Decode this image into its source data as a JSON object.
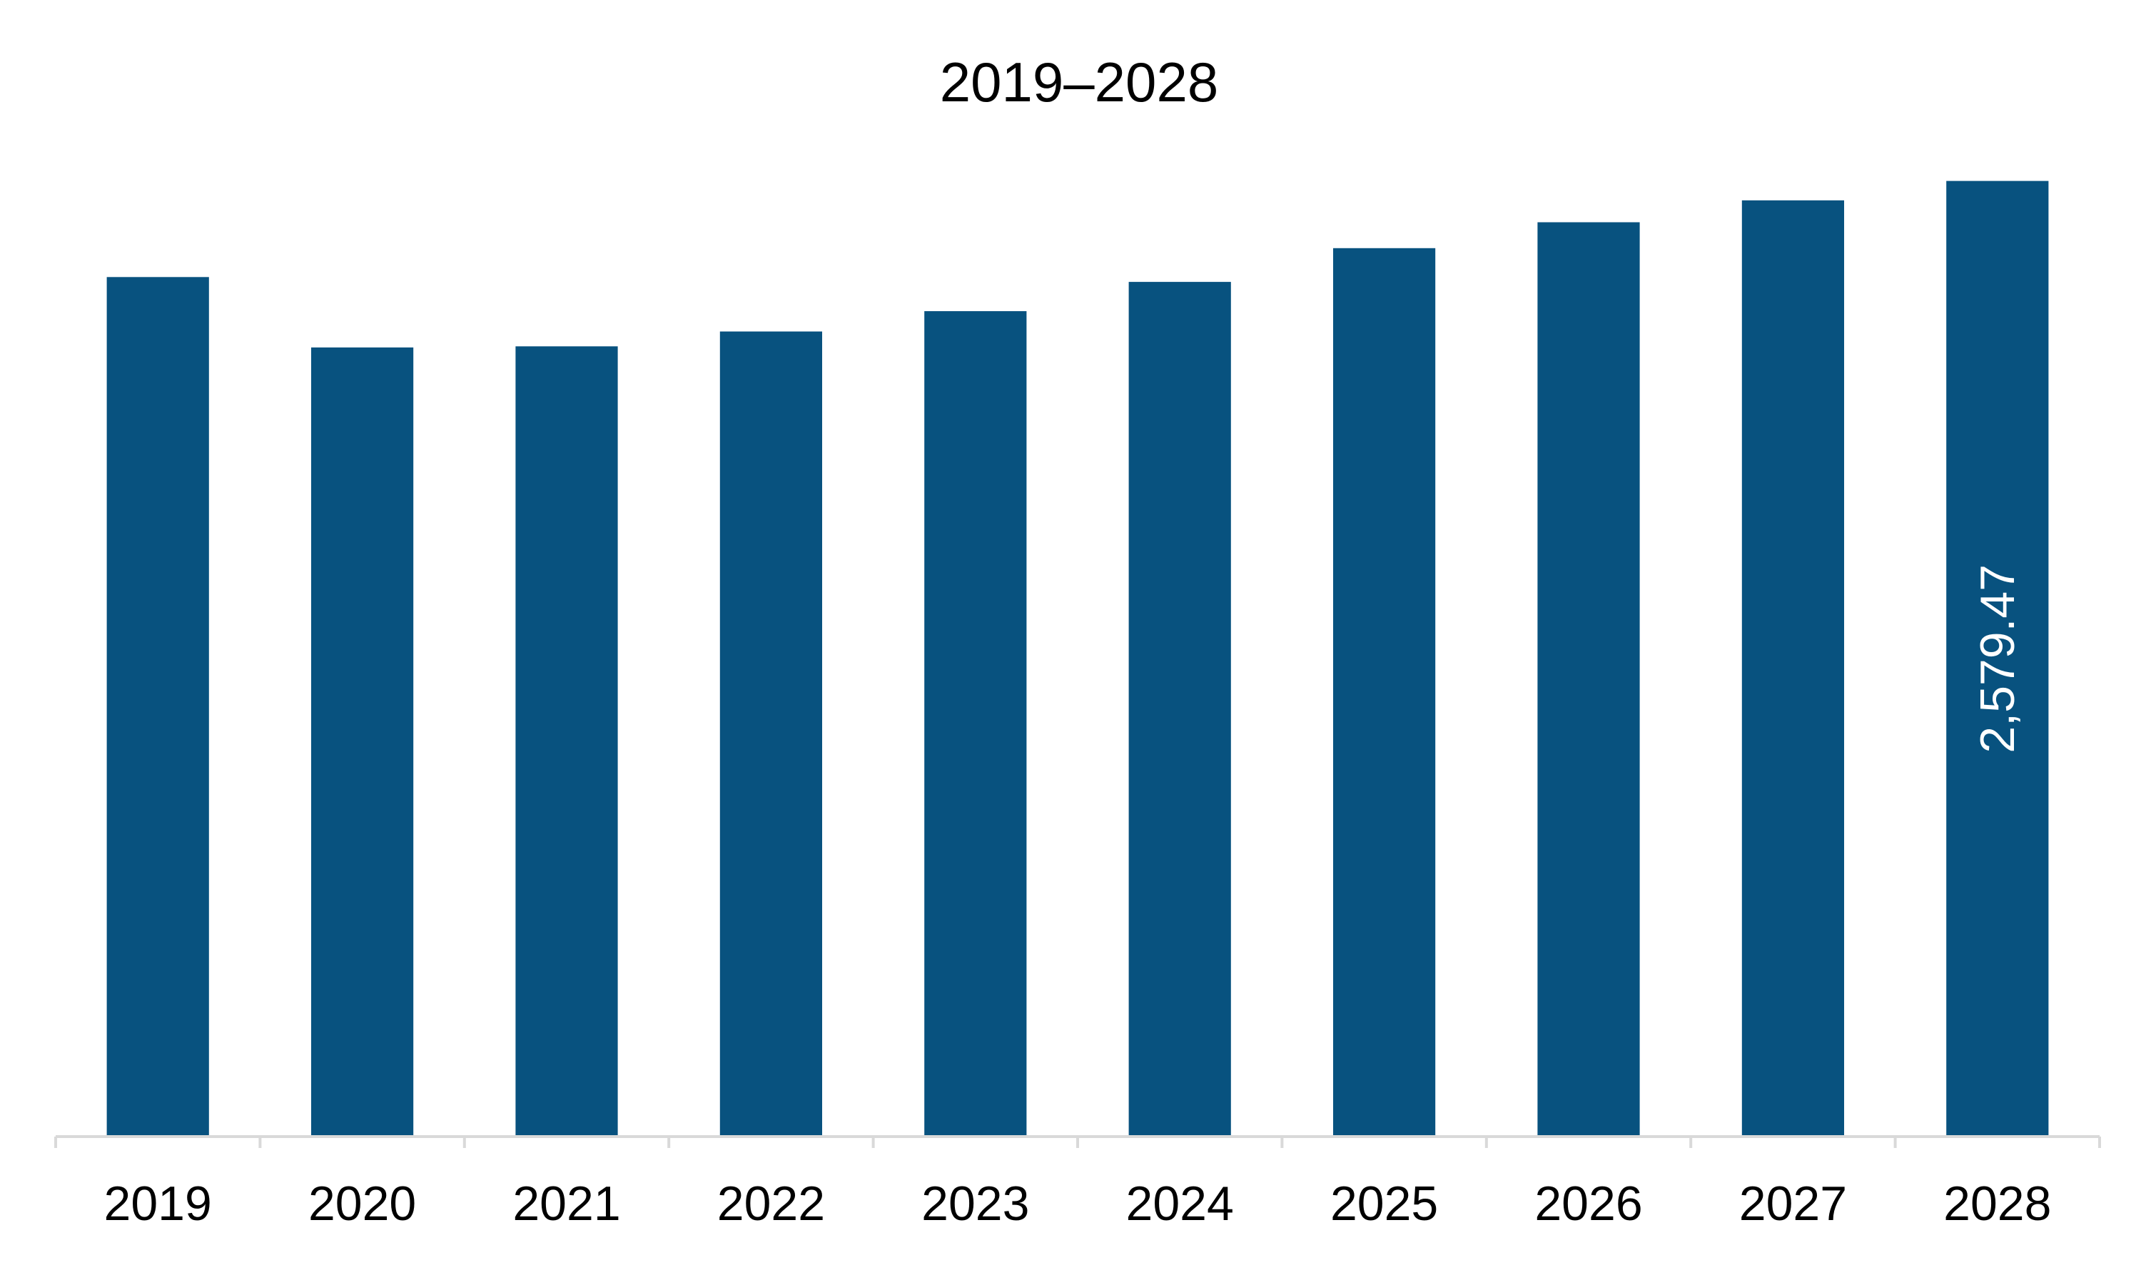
{
  "chart_data": {
    "type": "bar",
    "title": "2019–2028",
    "xlabel": "",
    "ylabel": "",
    "categories": [
      "2019",
      "2020",
      "2021",
      "2022",
      "2023",
      "2024",
      "2025",
      "2026",
      "2027",
      "2028"
    ],
    "series": [
      {
        "values": [
          2320,
          2130,
          2133,
          2173,
          2228,
          2307,
          2398,
          2468,
          2527,
          2579.47
        ],
        "color": "#08527f"
      }
    ],
    "data_labels": [
      {
        "category": "2028",
        "text": "2,579.47"
      }
    ],
    "ylim": [
      0,
      2700
    ],
    "grid": false,
    "legend": "none",
    "colors": {
      "bar": "#08527f",
      "label_on_bar": "#ffffff",
      "axis": "#d9d9d9",
      "text": "#000000"
    }
  }
}
